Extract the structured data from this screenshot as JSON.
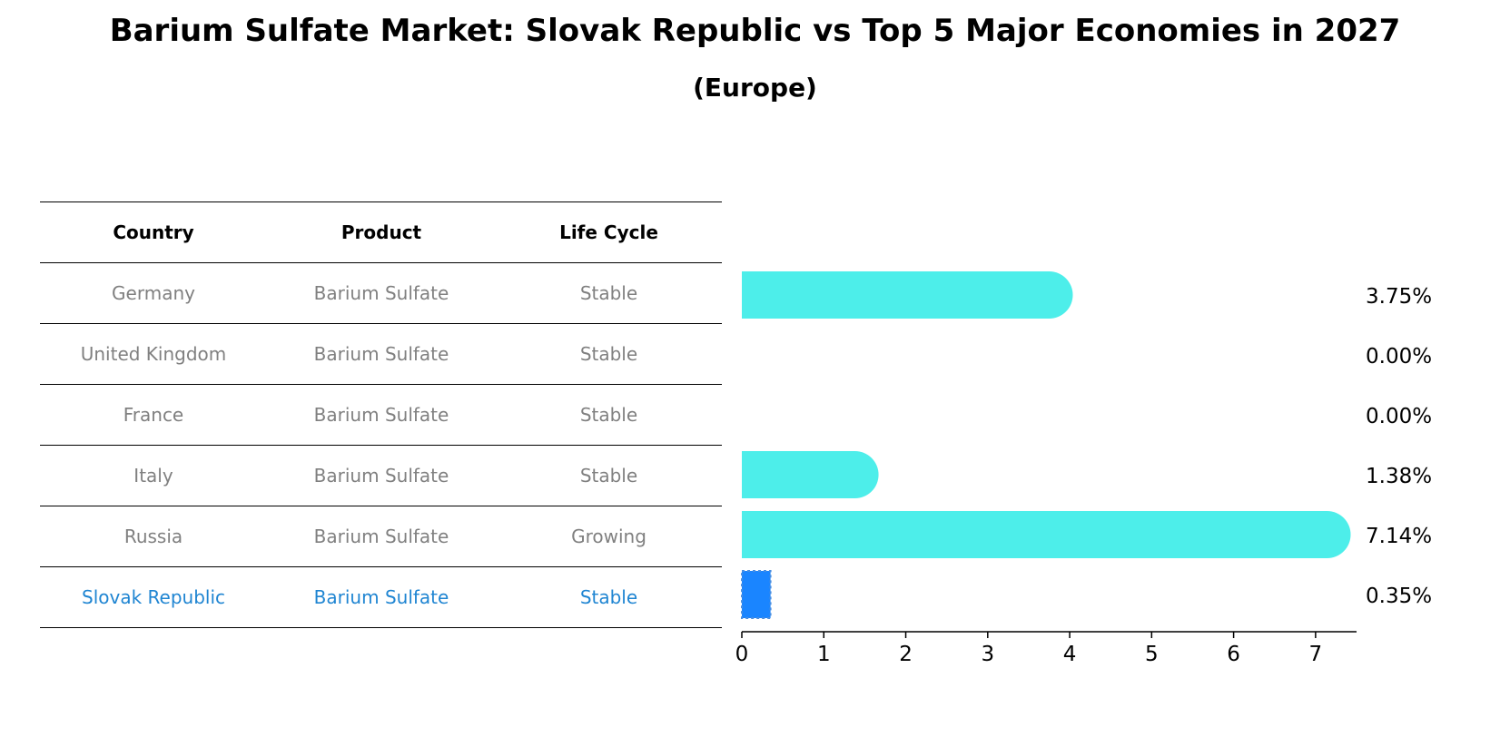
{
  "title": "Barium Sulfate Market: Slovak Republic vs Top 5 Major Economies in 2027",
  "subtitle": "(Europe)",
  "table": {
    "headers": [
      "Country",
      "Product",
      "Life Cycle"
    ],
    "rows": [
      [
        "Germany",
        "Barium Sulfate",
        "Stable"
      ],
      [
        "United Kingdom",
        "Barium Sulfate",
        "Stable"
      ],
      [
        "France",
        "Barium Sulfate",
        "Stable"
      ],
      [
        "Italy",
        "Barium Sulfate",
        "Stable"
      ],
      [
        "Russia",
        "Barium Sulfate",
        "Growing"
      ],
      [
        "Slovak Republic",
        "Barium Sulfate",
        "Stable"
      ]
    ],
    "highlight_row": 5,
    "highlight_color": "#1f85d2"
  },
  "chart_data": {
    "type": "bar",
    "orientation": "horizontal",
    "categories": [
      "Germany",
      "United Kingdom",
      "France",
      "Italy",
      "Russia",
      "Slovak Republic"
    ],
    "values": [
      3.75,
      0.0,
      0.0,
      1.38,
      7.14,
      0.35
    ],
    "value_labels": [
      "3.75%",
      "0.00%",
      "0.00%",
      "1.38%",
      "7.14%",
      "0.35%"
    ],
    "xlim": [
      0,
      7.5
    ],
    "xticks": [
      0,
      1,
      2,
      3,
      4,
      5,
      6,
      7
    ],
    "colors": {
      "default": "#4deeea",
      "highlight": "#1a85ff"
    },
    "highlight_index": 5,
    "grid": false
  }
}
